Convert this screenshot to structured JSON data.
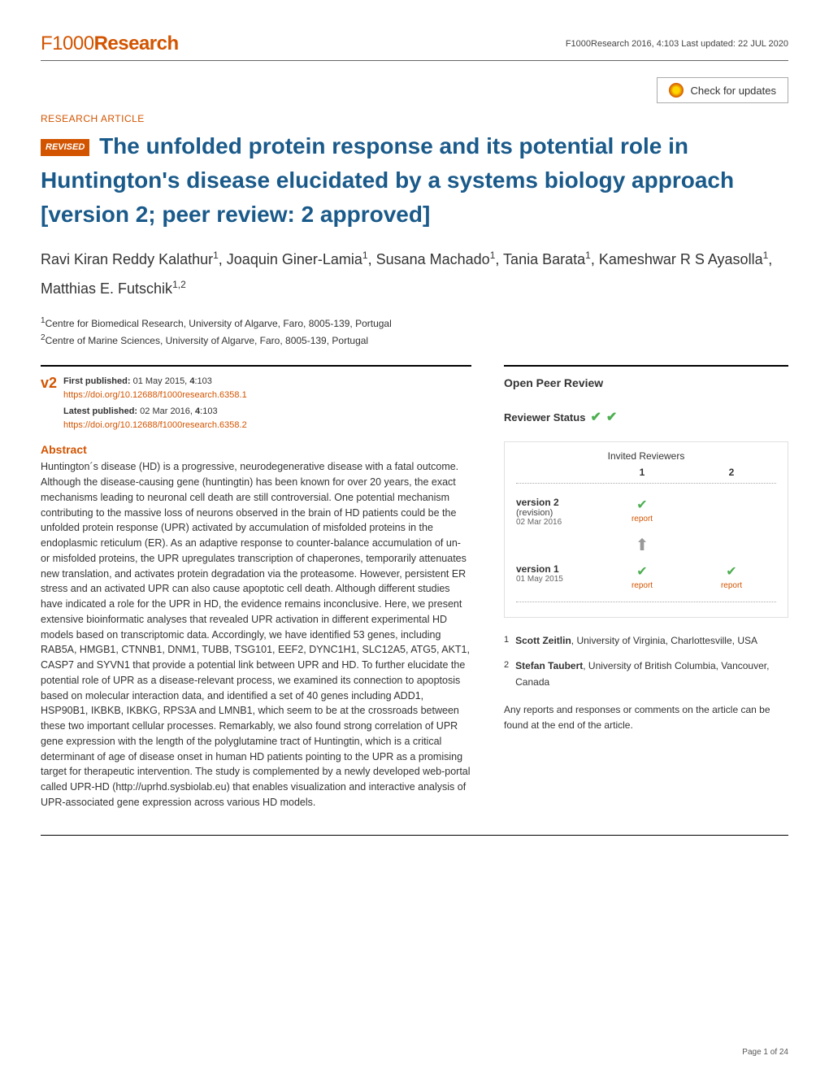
{
  "header": {
    "logo_prefix": "F1000",
    "logo_suffix": "Research",
    "meta": "F1000Research 2016, 4:103 Last updated: 22 JUL 2020"
  },
  "updates_button": "Check for updates",
  "article_type": "RESEARCH ARTICLE",
  "revised_badge": "REVISED",
  "title": " The unfolded protein response and its potential role in Huntington's disease elucidated by a systems biology approach [version 2; peer review: 2 approved]",
  "authors_html": "Ravi Kiran Reddy Kalathur<sup>1</sup>, Joaquin Giner-Lamia<sup>1</sup>, Susana Machado<sup>1</sup>, Tania Barata<sup>1</sup>, Kameshwar R S Ayasolla<sup>1</sup>, Matthias E. Futschik<sup>1,2</sup>",
  "affiliations": [
    "Centre for Biomedical Research, University of Algarve, Faro, 8005-139, Portugal",
    "Centre of Marine Sciences, University of Algarve, Faro, 8005-139, Portugal"
  ],
  "version_badge": "v2",
  "publication": {
    "first_label": "First published:",
    "first_text": " 01 May 2015, ",
    "first_vol": "4",
    "first_page": ":103",
    "first_doi": "https://doi.org/10.12688/f1000research.6358.1",
    "latest_label": "Latest published:",
    "latest_text": " 02 Mar 2016, ",
    "latest_vol": "4",
    "latest_page": ":103",
    "latest_doi": "https://doi.org/10.12688/f1000research.6358.2"
  },
  "abstract_heading": "Abstract",
  "abstract_text": "Huntington´s disease (HD) is a progressive, neurodegenerative disease with a fatal outcome. Although the disease-causing gene (huntingtin) has been known for over 20 years, the exact mechanisms leading to neuronal cell death are still controversial. One potential mechanism contributing to the massive loss of neurons observed in the brain of HD patients could be the unfolded protein response (UPR) activated by accumulation of misfolded proteins in the endoplasmic reticulum (ER). As an adaptive response to counter-balance accumulation of un- or misfolded proteins, the UPR upregulates transcription of chaperones, temporarily attenuates new translation, and activates protein degradation via the proteasome. However, persistent ER stress and an activated UPR can also cause apoptotic cell death. Although different studies have indicated a role for the UPR in HD, the evidence remains inconclusive. Here, we present extensive bioinformatic analyses that revealed UPR activation in different experimental HD models based on transcriptomic data. Accordingly, we have identified 53 genes, including RAB5A, HMGB1, CTNNB1, DNM1, TUBB, TSG101, EEF2, DYNC1H1, SLC12A5, ATG5, AKT1, CASP7 and SYVN1 that provide a potential link between UPR and HD. To further elucidate the potential role of UPR as a disease-relevant process, we examined its connection to apoptosis based on molecular interaction data, and identified a set of 40 genes including ADD1, HSP90B1, IKBKB, IKBKG, RPS3A and LMNB1, which seem to be at the crossroads between these two important cellular processes. Remarkably, we also found strong correlation of UPR gene expression with the length of the polyglutamine tract of Huntingtin, which is a critical determinant of age of disease onset in human HD patients pointing to the UPR as a promising target for therapeutic intervention. The study is complemented by a newly developed web-portal called UPR-HD (http://uprhd.sysbiolab.eu) that enables visualization and interactive analysis of UPR-associated gene expression across various HD models.",
  "peer": {
    "heading": "Open Peer Review",
    "status_label": "Reviewer Status",
    "invited_label": "Invited Reviewers",
    "col1": "1",
    "col2": "2",
    "rows": [
      {
        "version": "version 2",
        "sub": "(revision)",
        "date": "02 Mar 2016",
        "marks": [
          "check-report",
          ""
        ]
      },
      {
        "version": "version 1",
        "sub": "",
        "date": "01 May 2015",
        "marks": [
          "check-report",
          "check-report"
        ]
      }
    ],
    "report_label": "report",
    "reviewers": [
      {
        "num": "1",
        "name": "Scott Zeitlin",
        "affil": ", University of Virginia, Charlottesville, USA"
      },
      {
        "num": "2",
        "name": "Stefan Taubert",
        "affil": ", University of British Columbia, Vancouver, Canada"
      }
    ],
    "note": "Any reports and responses or comments on the article can be found at the end of the article."
  },
  "page_num": "Page 1 of 24",
  "colors": {
    "accent": "#d35400",
    "title": "#1a5a8a",
    "check": "#4caf50"
  }
}
